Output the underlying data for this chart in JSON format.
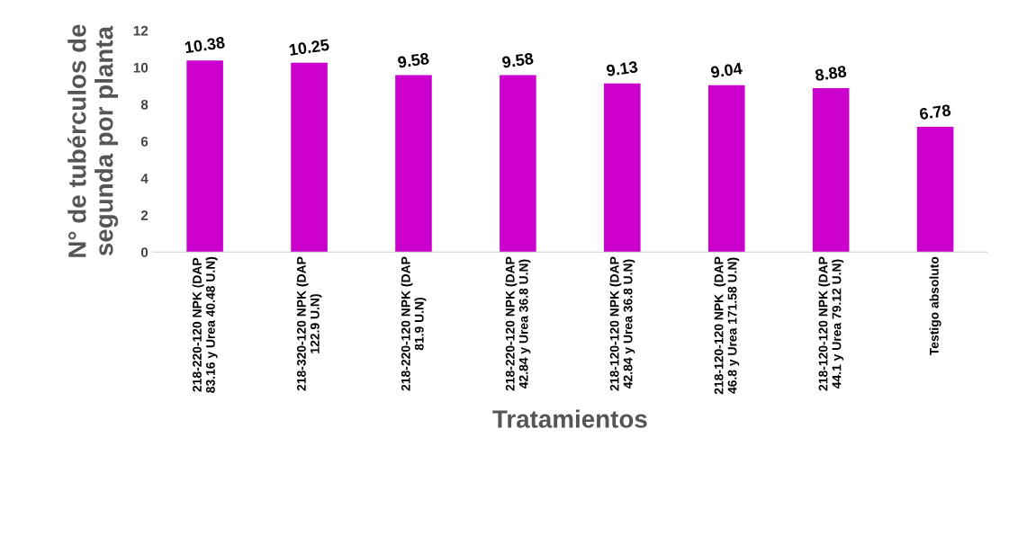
{
  "chart_data": {
    "type": "bar",
    "xlabel": "Tratamientos",
    "ylabel": "N° de tubérculos de\nsegunda por planta",
    "categories": [
      "218-220-120 NPK (DAP\n83.16 y Urea 40.48 U.N)",
      "218-320-120 NPK (DAP\n122.9 U.N)",
      "218-220-120 NPK (DAP\n81.9 U.N)",
      "218-220-120 NPK (DAP\n42.84 y Urea 36.8 U.N)",
      "218-120-120 NPK (DAP\n42.84 y Urea 36.8 U.N)",
      "218-120-120 NPK  (DAP\n46.8 y Urea 171.58 U.N)",
      "218-120-120 NPK (DAP\n44.1 y Urea 79.12 U.N)",
      "Testigo absoluto"
    ],
    "values": [
      10.38,
      10.25,
      9.58,
      9.58,
      9.13,
      9.04,
      8.88,
      6.78
    ],
    "color": "#cc00cc",
    "ylim": [
      0,
      12
    ],
    "yticks": [
      0,
      2,
      4,
      6,
      8,
      10,
      12
    ],
    "data_labels": true,
    "grid": false
  }
}
